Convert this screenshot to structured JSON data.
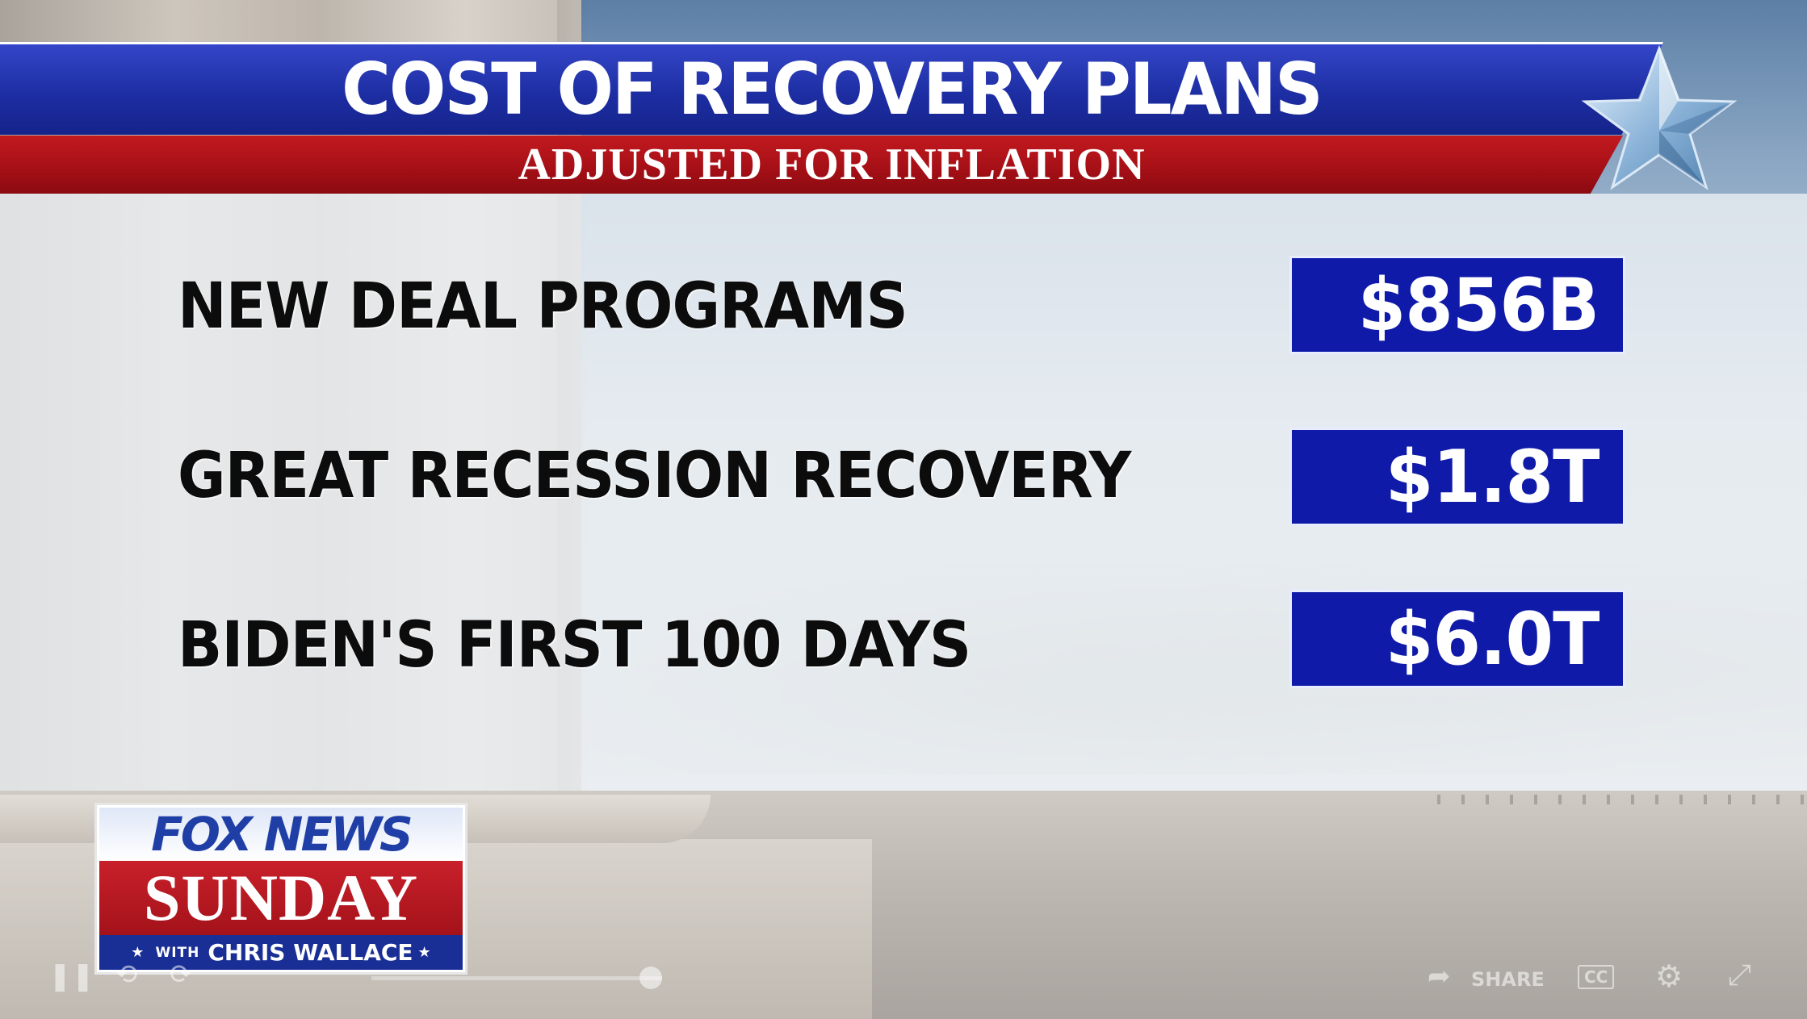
{
  "graphic": {
    "title": "COST OF RECOVERY PLANS",
    "subtitle": "ADJUSTED FOR INFLATION",
    "rows": [
      {
        "label": "NEW DEAL PROGRAMS",
        "value": "$856B"
      },
      {
        "label": "GREAT RECESSION RECOVERY",
        "value": "$1.8T"
      },
      {
        "label": "BIDEN'S FIRST 100 DAYS",
        "value": "$6.0T"
      }
    ]
  },
  "logo": {
    "brand": "FOX NEWS",
    "show": "SUNDAY",
    "with": "WITH",
    "host": "CHRIS WALLACE",
    "star": "★"
  },
  "player": {
    "share_label": "SHARE",
    "cc_label": "CC",
    "icons": [
      "pause-icon",
      "rewind-icon",
      "forward-icon",
      "share-icon",
      "settings-icon",
      "fullscreen-icon"
    ]
  },
  "colors": {
    "title_blue": "#1d2ea3",
    "subtitle_red": "#a40f16",
    "value_box": "#0f1aa8"
  }
}
